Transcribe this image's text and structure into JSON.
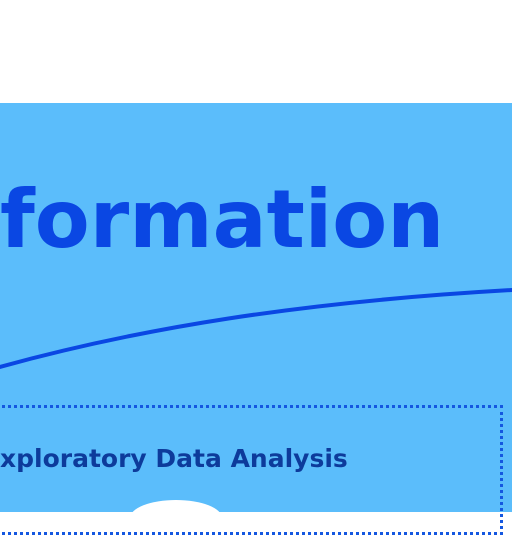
{
  "heading": {
    "text": "formation"
  },
  "section": {
    "title": "xploratory Data Analysis"
  },
  "colors": {
    "background": "#ffffff",
    "panel": "#5bbdfb",
    "heading": "#0a47e3",
    "curve": "#0a47e3",
    "dotted_border": "#1457e0",
    "section_title": "#0d3b9b"
  }
}
